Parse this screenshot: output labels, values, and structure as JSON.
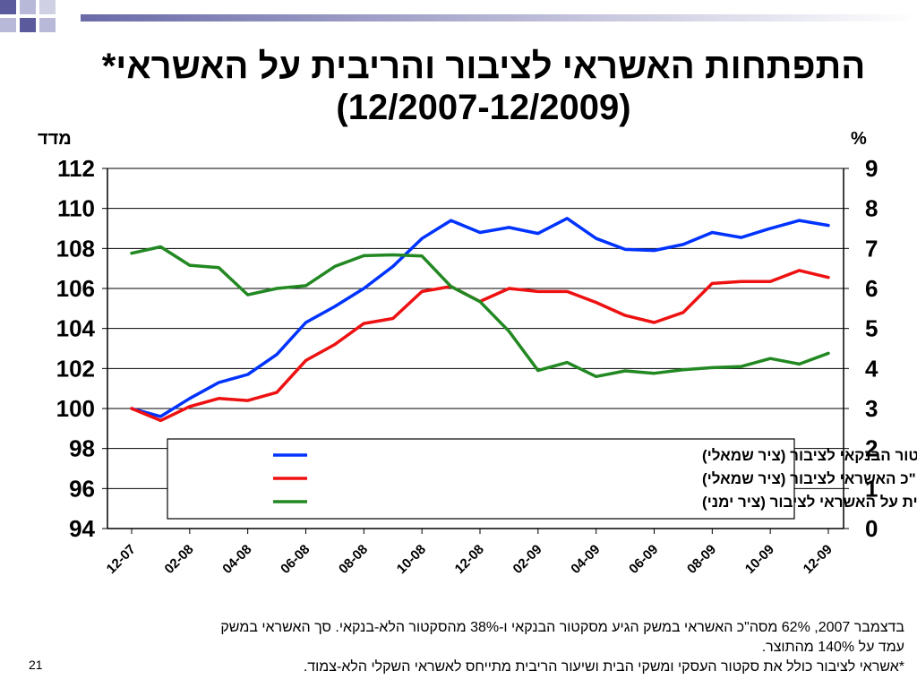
{
  "slide": {
    "title_line1": "התפתחות האשראי לציבור והריבית על האשראי*",
    "title_line2": "(12/2007-12/2009)",
    "unit_left": "מדד",
    "unit_right": "%",
    "footnote_line1": "בדצמבר 2007, 62% מסה\"כ האשראי במשק הגיע מסקטור הבנקאי ו-38% מהסקטור הלא-בנקאי. סך האשראי במשק",
    "footnote_line2": "עמד על 140% מהתוצר.",
    "footnote_line3": "*אשראי לציבור כולל את סקטור העסקי ומשקי הבית ושיעור הריבית מתייחס לאשראי השקלי הלא-צמוד.",
    "slide_number": "21"
  },
  "colors": {
    "blue": "#0033ff",
    "red": "#ee1111",
    "green": "#228822",
    "deco_dark": "#5a5a9c",
    "deco_light": "#b8b8d8"
  },
  "chart_data": {
    "type": "line",
    "x": [
      "12-07",
      "01-08",
      "02-08",
      "03-08",
      "04-08",
      "05-08",
      "06-08",
      "07-08",
      "08-08",
      "09-08",
      "10-08",
      "11-08",
      "12-08",
      "01-09",
      "02-09",
      "03-09",
      "04-09",
      "05-09",
      "06-09",
      "07-09",
      "08-09",
      "09-09",
      "10-09",
      "11-09",
      "12-09"
    ],
    "xticks": [
      "12-07",
      "02-08",
      "04-08",
      "06-08",
      "08-08",
      "10-08",
      "12-08",
      "02-09",
      "04-09",
      "06-09",
      "08-09",
      "10-09",
      "12-09"
    ],
    "y_left": {
      "ylim": [
        94,
        112
      ],
      "ticks": [
        "112",
        "110",
        "108",
        "106",
        "104",
        "102",
        "100",
        "98",
        "96",
        "94"
      ]
    },
    "y_right": {
      "ylim": [
        0,
        9
      ],
      "ticks": [
        "9",
        "8",
        "7",
        "6",
        "5",
        "4",
        "3",
        "2",
        "1",
        "0"
      ]
    },
    "series": [
      {
        "name": "אשראי מהסקטור הבנקאי לציבור (ציר שמאלי)",
        "axis": "left",
        "color": "#0033ff",
        "values": [
          100.0,
          99.6,
          100.5,
          101.3,
          101.7,
          102.7,
          104.3,
          105.1,
          106.0,
          107.1,
          108.5,
          109.4,
          108.8,
          109.05,
          108.75,
          109.5,
          108.5,
          107.95,
          107.9,
          108.2,
          108.8,
          108.55,
          109.0,
          109.4,
          109.15
        ]
      },
      {
        "name": "סה\"כ האשראי לציבור (ציר שמאלי)",
        "axis": "left",
        "color": "#ee1111",
        "values": [
          100.0,
          99.4,
          100.1,
          100.5,
          100.4,
          100.8,
          102.4,
          103.2,
          104.25,
          104.5,
          105.85,
          106.1,
          105.35,
          106.0,
          105.85,
          105.85,
          105.3,
          104.65,
          104.3,
          104.8,
          106.25,
          106.35,
          106.35,
          106.9,
          106.55
        ]
      },
      {
        "name": "שיעור הריבית על האשראי לציבור (ציר ימני)",
        "axis": "right",
        "color": "#228822",
        "values": [
          6.88,
          7.04,
          6.58,
          6.52,
          5.84,
          6.0,
          6.07,
          6.55,
          6.82,
          6.84,
          6.81,
          6.05,
          5.67,
          4.93,
          3.95,
          4.15,
          3.8,
          3.94,
          3.88,
          3.97,
          4.02,
          4.05,
          4.25,
          4.11,
          4.38
        ]
      }
    ],
    "legend_position": "bottom-center",
    "grid": true
  }
}
